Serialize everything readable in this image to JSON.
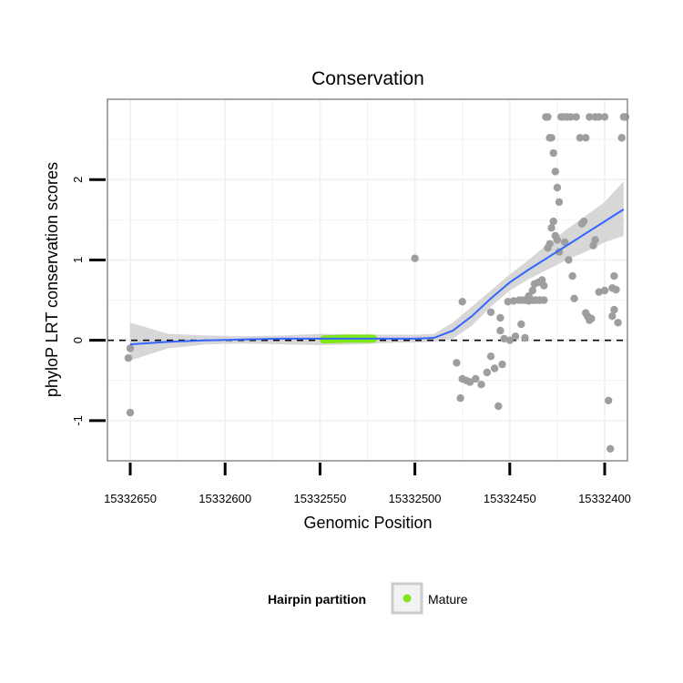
{
  "chart_data": {
    "type": "scatter",
    "title": "Conservation",
    "xlabel": "Genomic Position",
    "ylabel": "phyloP LRT conservation scores",
    "x_reversed": true,
    "xlim": [
      15332662,
      15332388
    ],
    "ylim": [
      -1.5,
      3.0
    ],
    "x_ticks": [
      15332650,
      15332600,
      15332550,
      15332500,
      15332450,
      15332400
    ],
    "x_tick_labels": [
      "15332650",
      "15332600",
      "15332550",
      "15332500",
      "15332450",
      "15332400"
    ],
    "y_ticks": [
      -1,
      0,
      1,
      2
    ],
    "y_tick_labels": [
      "-1",
      "0",
      "1",
      "2"
    ],
    "grid": true,
    "reference_line_y": 0,
    "legend": {
      "title": "Hairpin partition",
      "entries": [
        {
          "label": "Mature",
          "color": "#7fe61a"
        }
      ],
      "position": "bottom"
    },
    "colors": {
      "points": "#9e9e9e",
      "smooth": "#3366ff",
      "band": "#d3d3d3",
      "mature": "#7fe61a",
      "panel_border": "#8c8c8c",
      "grid": "#f2f2f2"
    },
    "series": [
      {
        "name": "scores",
        "x": [
          15332650,
          15332650,
          15332651,
          15332500,
          15332460,
          15332455,
          15332475,
          15332440,
          15332438,
          15332437,
          15332435,
          15332433,
          15332432,
          15332430,
          15332429,
          15332428,
          15332427,
          15332426,
          15332425,
          15332424,
          15332421,
          15332419,
          15332417,
          15332416,
          15332412,
          15332411,
          15332410,
          15332409,
          15332408,
          15332407,
          15332406,
          15332405,
          15332403,
          15332400,
          15332396,
          15332395,
          15332394,
          15332393,
          15332391,
          15332391,
          15332390,
          15332389,
          15332455,
          15332453,
          15332450,
          15332447,
          15332444,
          15332442,
          15332478,
          15332476,
          15332475,
          15332473,
          15332471,
          15332468,
          15332465,
          15332462,
          15332460,
          15332458,
          15332456,
          15332454,
          15332451,
          15332448,
          15332445,
          15332443,
          15332441,
          15332439,
          15332437,
          15332434,
          15332432,
          15332431,
          15332430,
          15332429,
          15332428,
          15332427,
          15332426,
          15332425,
          15332424,
          15332423,
          15332422,
          15332420,
          15332418,
          15332415,
          15332413,
          15332410,
          15332408,
          15332405,
          15332403,
          15332400,
          15332398,
          15332397,
          15332396,
          15332395,
          15332442,
          15332440,
          15332438,
          15332436
        ],
        "y": [
          -0.9,
          -0.1,
          -0.22,
          1.02,
          0.35,
          0.28,
          0.48,
          0.55,
          0.62,
          0.7,
          0.72,
          0.75,
          0.68,
          1.15,
          1.2,
          1.4,
          1.48,
          1.3,
          1.25,
          1.1,
          1.22,
          1.0,
          0.8,
          0.52,
          1.45,
          1.48,
          0.34,
          0.3,
          0.25,
          0.27,
          1.18,
          1.25,
          0.6,
          0.62,
          0.65,
          0.8,
          0.63,
          0.22,
          2.52,
          2.52,
          2.78,
          2.78,
          0.12,
          0.02,
          0.0,
          0.05,
          0.2,
          0.03,
          -0.28,
          -0.72,
          -0.48,
          -0.5,
          -0.52,
          -0.48,
          -0.55,
          -0.4,
          -0.2,
          -0.35,
          -0.82,
          -0.3,
          0.48,
          0.49,
          0.5,
          0.5,
          0.5,
          0.5,
          0.5,
          0.5,
          0.5,
          2.78,
          2.78,
          2.52,
          2.52,
          2.33,
          2.1,
          1.9,
          1.72,
          2.78,
          2.78,
          2.78,
          2.78,
          2.78,
          2.52,
          2.52,
          2.78,
          2.78,
          2.78,
          2.78,
          -0.75,
          -1.35,
          0.3,
          0.38,
          0.5,
          0.49,
          0.5,
          0.5
        ]
      }
    ],
    "smooth_curve": {
      "x": [
        15332650,
        15332630,
        15332610,
        15332590,
        15332570,
        15332550,
        15332530,
        15332510,
        15332500,
        15332490,
        15332480,
        15332470,
        15332460,
        15332450,
        15332440,
        15332430,
        15332420,
        15332410,
        15332400,
        15332390
      ],
      "y": [
        -0.05,
        -0.02,
        0.0,
        0.01,
        0.02,
        0.02,
        0.02,
        0.02,
        0.02,
        0.03,
        0.12,
        0.3,
        0.52,
        0.72,
        0.88,
        1.03,
        1.18,
        1.33,
        1.48,
        1.63
      ],
      "band_low": [
        -0.25,
        -0.1,
        -0.05,
        -0.04,
        -0.05,
        -0.06,
        -0.05,
        -0.03,
        -0.03,
        -0.02,
        0.02,
        0.18,
        0.42,
        0.62,
        0.76,
        0.88,
        1.0,
        1.1,
        1.22,
        1.3
      ],
      "band_high": [
        0.22,
        0.08,
        0.06,
        0.05,
        0.06,
        0.08,
        0.07,
        0.07,
        0.07,
        0.08,
        0.22,
        0.42,
        0.62,
        0.82,
        1.0,
        1.2,
        1.38,
        1.55,
        1.72,
        1.98
      ]
    },
    "mature_region": {
      "x_start": 15332548,
      "x_end": 15332522,
      "y": [
        0.01,
        0.02,
        0.02
      ]
    }
  }
}
